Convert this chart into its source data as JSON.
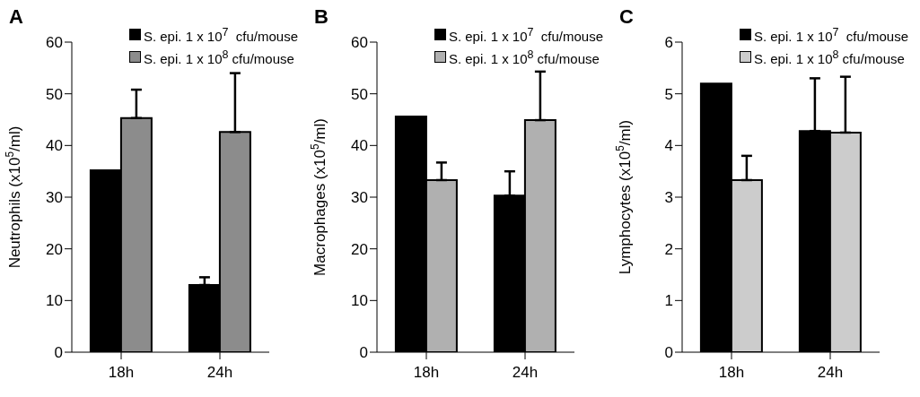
{
  "chart_data": [
    {
      "type": "bar",
      "title": "A",
      "ylabel": "Neutrophils (x10$^{5}$/ml)",
      "categories": [
        "18h",
        "24h"
      ],
      "ylim": [
        0,
        60
      ],
      "yticks": [
        0,
        10,
        20,
        30,
        40,
        50,
        60
      ],
      "grid": false,
      "legend": "top right",
      "series": [
        {
          "name": "S. epi. 1 x 10$^{7}$  cfu/mouse",
          "color": "#000000",
          "values": [
            35.2,
            13.0
          ],
          "errors": [
            null,
            [
              13.0,
              14.5
            ]
          ]
        },
        {
          "name": "S. epi. 1 x 10$^{8}$ cfu/mouse",
          "color": "#8c8c8c",
          "values": [
            45.3,
            42.6
          ],
          "errors": [
            [
              45.3,
              50.8
            ],
            [
              42.6,
              54.0
            ]
          ]
        }
      ]
    },
    {
      "type": "bar",
      "title": "B",
      "ylabel": "Macrophages (x10$^{5}$/ml)",
      "categories": [
        "18h",
        "24h"
      ],
      "ylim": [
        0,
        60
      ],
      "yticks": [
        0,
        10,
        20,
        30,
        40,
        50,
        60
      ],
      "grid": false,
      "legend": "top right",
      "series": [
        {
          "name": "S. epi. 1 x 10$^{7}$  cfu/mouse",
          "color": "#000000",
          "values": [
            45.6,
            30.3
          ],
          "errors": [
            null,
            [
              30.3,
              35.0
            ]
          ]
        },
        {
          "name": "S. epi. 1 x 10$^{8}$ cfu/mouse",
          "color": "#b0b0b0",
          "values": [
            33.3,
            44.9
          ],
          "errors": [
            [
              33.3,
              36.7
            ],
            [
              44.9,
              54.3
            ]
          ]
        }
      ]
    },
    {
      "type": "bar",
      "title": "C",
      "ylabel": "Lymphocytes (x10$^{5}$/ml)",
      "categories": [
        "18h",
        "24h"
      ],
      "ylim": [
        0,
        6
      ],
      "yticks": [
        0,
        1,
        2,
        3,
        4,
        5,
        6
      ],
      "grid": false,
      "legend": "top right",
      "series": [
        {
          "name": "S. epi. 1 x 10$^{7}$  cfu/mouse",
          "color": "#000000",
          "values": [
            5.2,
            4.28
          ],
          "errors": [
            null,
            [
              4.28,
              5.3
            ]
          ]
        },
        {
          "name": "S. epi. 1 x 10$^{8}$ cfu/mouse",
          "color": "#cccccc",
          "values": [
            3.33,
            4.25
          ],
          "errors": [
            [
              3.33,
              3.8
            ],
            [
              4.25,
              5.33
            ]
          ]
        }
      ]
    }
  ]
}
